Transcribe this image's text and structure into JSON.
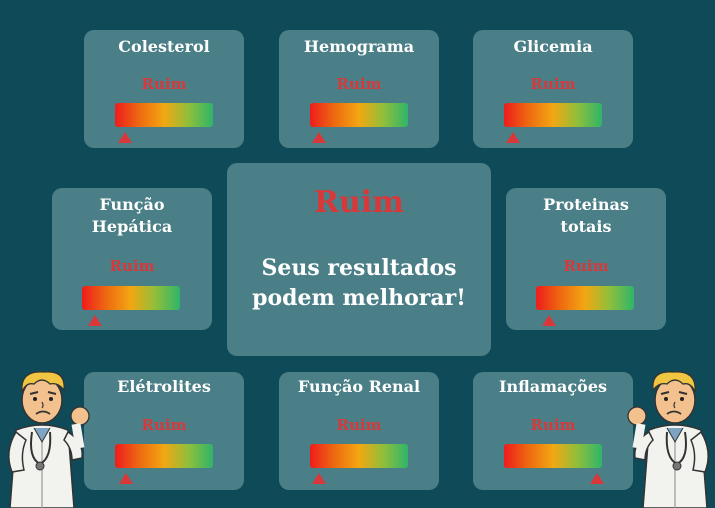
{
  "cards": [
    {
      "title": "Colesterol",
      "status": "Ruim"
    },
    {
      "title": "Hemograma",
      "status": "Ruim"
    },
    {
      "title": "Glicemia",
      "status": "Ruim"
    },
    {
      "title": "Função\nHepática",
      "status": "Ruim"
    },
    {
      "title": "Proteinas\ntotais",
      "status": "Ruim"
    },
    {
      "title": "Elétrolites",
      "status": "Ruim"
    },
    {
      "title": "Função Renal",
      "status": "Ruim"
    },
    {
      "title": "Inflamações",
      "status": "Ruim"
    }
  ],
  "summary": {
    "status": "Ruim",
    "message_line1": "Seus resultados",
    "message_line2": "podem melhorar!"
  },
  "colors": {
    "background": "#0e4a57",
    "card": "#4b7f87",
    "status_bad": "#d7393b"
  },
  "mascots": [
    "worried-doctor-icon",
    "worried-doctor-icon"
  ]
}
